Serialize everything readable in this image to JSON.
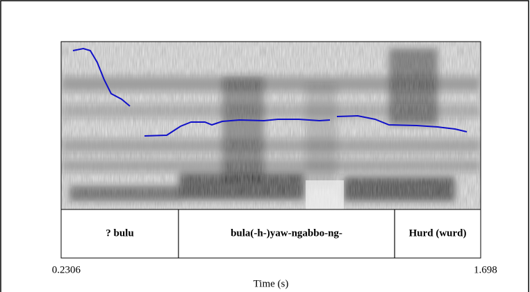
{
  "chart_data": {
    "type": "spectrogram",
    "xlabel": "Time (s)",
    "xlim": [
      0.2306,
      1.698
    ],
    "xticks": [
      0.2306,
      1.698
    ],
    "intervals": [
      {
        "start": 0.2306,
        "end": 0.641,
        "label": "? bulu"
      },
      {
        "start": 0.641,
        "end": 1.397,
        "label": "bula(-h-)yaw-ngabbo-ng-"
      },
      {
        "start": 1.397,
        "end": 1.698,
        "label": "Hurd (wurd)"
      }
    ],
    "line_color": "#1010c8"
  }
}
